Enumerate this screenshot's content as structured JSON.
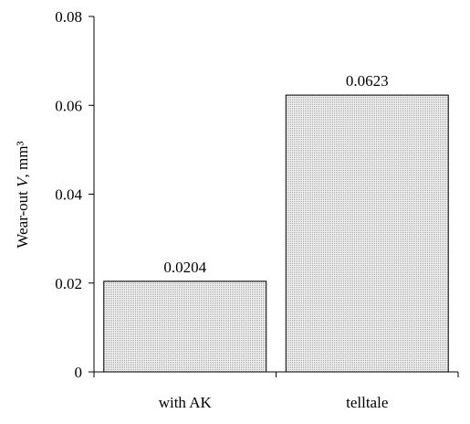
{
  "chart_data": {
    "type": "bar",
    "categories": [
      "with AK",
      "telltale"
    ],
    "values": [
      0.0204,
      0.0623
    ],
    "data_labels": [
      "0.0204",
      "0.0623"
    ],
    "ylabel": {
      "prefix": "Wear-out ",
      "italic": "V",
      "suffix": ", mm³"
    },
    "ylim": [
      0,
      0.08
    ],
    "yticks": [
      0,
      0.02,
      0.04,
      0.06,
      0.08
    ],
    "ytick_labels": [
      "0",
      "0.02",
      "0.04",
      "0.06",
      "0.08"
    ],
    "grid": false,
    "legend": "none",
    "bar_fill": "#dcdcdc",
    "bar_edge": "#000000"
  }
}
